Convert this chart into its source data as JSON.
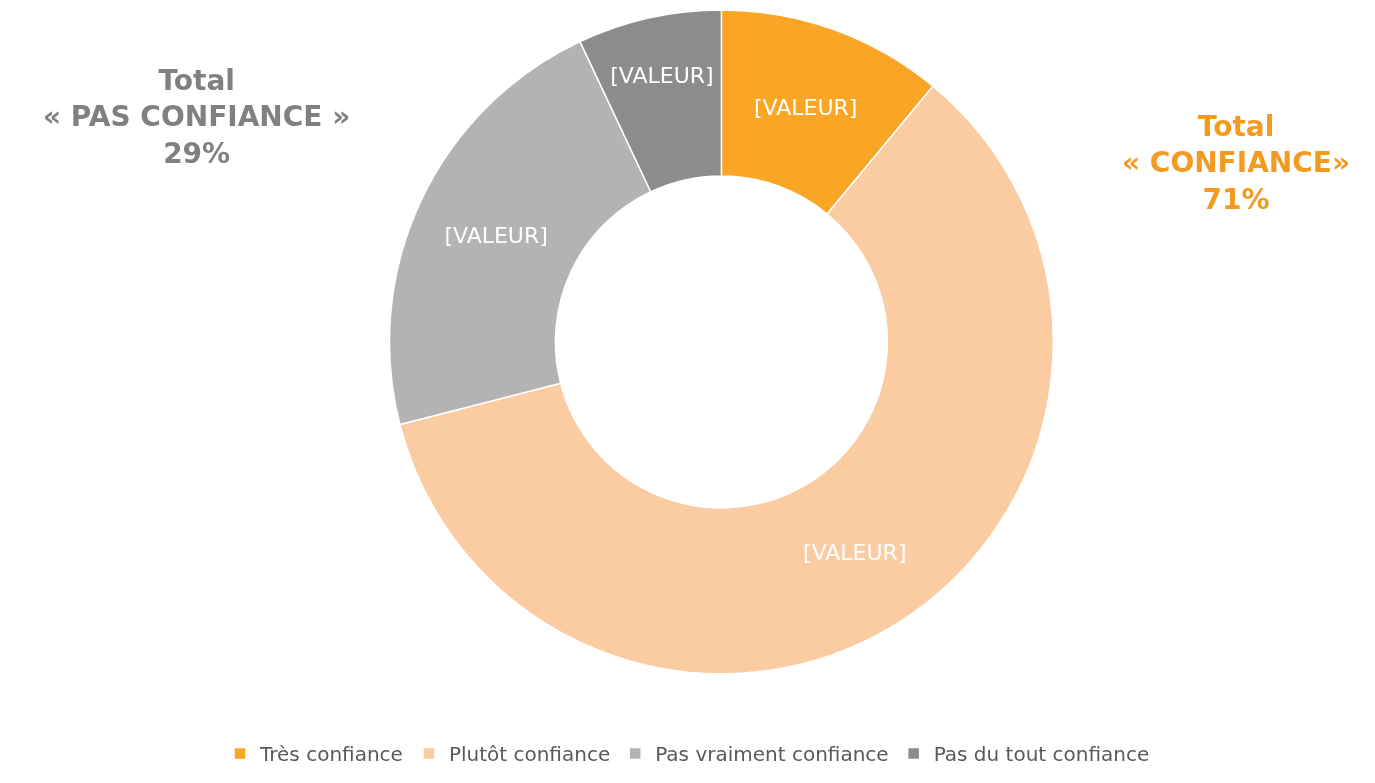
{
  "chart_data": {
    "type": "donut",
    "categories": [
      "Très confiance",
      "Plutôt confiance",
      "Pas vraiment confiance",
      "Pas du tout confiance"
    ],
    "values": [
      11,
      60,
      22,
      7
    ],
    "colors": [
      "#f9a526",
      "#fbcba2",
      "#b3b3b3",
      "#8c8c8c"
    ],
    "value_labels": [
      "[VALEUR]",
      "[VALEUR]",
      "[VALEUR]",
      "[VALEUR]"
    ],
    "annotations": [
      "Total\n« PAS CONFIANCE »\n29%",
      "Total\n« CONFIANCE»\n71%"
    ],
    "legend": "bottom"
  }
}
